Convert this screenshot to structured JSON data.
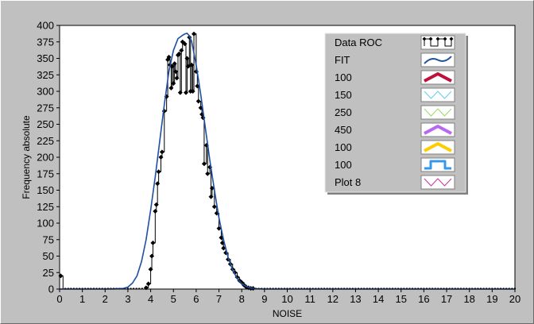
{
  "chart_data": {
    "type": "line",
    "title": "",
    "xlabel": "NOISE",
    "ylabel": "Frequency absolute",
    "xlim": [
      0,
      20
    ],
    "ylim": [
      0,
      400
    ],
    "x_ticks": [
      0,
      1,
      2,
      3,
      4,
      5,
      6,
      7,
      8,
      9,
      10,
      11,
      12,
      13,
      14,
      15,
      16,
      17,
      18,
      19,
      20
    ],
    "y_ticks": [
      0,
      25,
      50,
      75,
      100,
      125,
      150,
      175,
      200,
      225,
      250,
      275,
      300,
      325,
      350,
      375,
      400
    ],
    "grid": false,
    "legend_position": "top-right",
    "colors": {
      "background": "#c0c0c0",
      "plot_area": "#ffffff",
      "data": "#000000",
      "fit": "#1f4fa0"
    },
    "legend": [
      {
        "label": "Data ROC",
        "color": "#000000",
        "style": "line-marker"
      },
      {
        "label": "FIT",
        "color": "#1f4fa0",
        "style": "zigzag"
      },
      {
        "label": "100",
        "color": "#c0103a",
        "style": "zigzag-thick"
      },
      {
        "label": "150",
        "color": "#66ccee",
        "style": "zigzag-thin"
      },
      {
        "label": "250",
        "color": "#99dd66",
        "style": "zigzag-thin"
      },
      {
        "label": "450",
        "color": "#bb66ee",
        "style": "zigzag-thick"
      },
      {
        "label": "100",
        "color": "#ffcc00",
        "style": "zigzag-thick"
      },
      {
        "label": "100",
        "color": "#3399ee",
        "style": "step"
      },
      {
        "label": "Plot 8",
        "color": "#cc3399",
        "style": "zigzag-thin"
      }
    ],
    "series": [
      {
        "name": "Data ROC",
        "style": "step-marker",
        "points": [
          [
            0.05,
            20
          ],
          [
            0.15,
            0
          ],
          [
            3.7,
            0
          ],
          [
            3.8,
            2
          ],
          [
            3.9,
            8
          ],
          [
            4.0,
            30
          ],
          [
            4.05,
            50
          ],
          [
            4.1,
            70
          ],
          [
            4.2,
            118
          ],
          [
            4.25,
            128
          ],
          [
            4.3,
            160
          ],
          [
            4.35,
            178
          ],
          [
            4.45,
            200
          ],
          [
            4.5,
            208
          ],
          [
            4.6,
            270
          ],
          [
            4.7,
            292
          ],
          [
            4.75,
            348
          ],
          [
            4.8,
            352
          ],
          [
            4.85,
            340
          ],
          [
            4.9,
            305
          ],
          [
            4.95,
            338
          ],
          [
            5.0,
            312
          ],
          [
            5.05,
            342
          ],
          [
            5.1,
            330
          ],
          [
            5.15,
            320
          ],
          [
            5.2,
            355
          ],
          [
            5.25,
            357
          ],
          [
            5.3,
            298
          ],
          [
            5.35,
            362
          ],
          [
            5.4,
            375
          ],
          [
            5.5,
            372
          ],
          [
            5.55,
            298
          ],
          [
            5.6,
            350
          ],
          [
            5.65,
            338
          ],
          [
            5.7,
            382
          ],
          [
            5.75,
            300
          ],
          [
            5.8,
            340
          ],
          [
            5.85,
            300
          ],
          [
            5.9,
            387
          ],
          [
            6.0,
            330
          ],
          [
            6.05,
            308
          ],
          [
            6.1,
            285
          ],
          [
            6.2,
            275
          ],
          [
            6.25,
            265
          ],
          [
            6.3,
            260
          ],
          [
            6.35,
            190
          ],
          [
            6.45,
            218
          ],
          [
            6.5,
            175
          ],
          [
            6.6,
            185
          ],
          [
            6.65,
            140
          ],
          [
            6.7,
            153
          ],
          [
            6.8,
            125
          ],
          [
            6.9,
            115
          ],
          [
            7.0,
            92
          ],
          [
            7.1,
            78
          ],
          [
            7.15,
            70
          ],
          [
            7.2,
            62
          ],
          [
            7.3,
            55
          ],
          [
            7.4,
            45
          ],
          [
            7.5,
            38
          ],
          [
            7.6,
            30
          ],
          [
            7.7,
            25
          ],
          [
            7.8,
            18
          ],
          [
            7.9,
            13
          ],
          [
            8.0,
            10
          ],
          [
            8.1,
            6
          ],
          [
            8.2,
            3
          ],
          [
            8.3,
            2
          ],
          [
            8.4,
            1
          ],
          [
            8.5,
            1
          ],
          [
            8.6,
            0
          ],
          [
            20,
            0
          ]
        ]
      },
      {
        "name": "FIT",
        "style": "line",
        "points": [
          [
            0,
            0
          ],
          [
            2,
            0
          ],
          [
            2.4,
            0.2
          ],
          [
            2.8,
            1
          ],
          [
            3.0,
            3
          ],
          [
            3.2,
            9
          ],
          [
            3.4,
            20
          ],
          [
            3.6,
            42
          ],
          [
            3.8,
            75
          ],
          [
            4.0,
            120
          ],
          [
            4.2,
            170
          ],
          [
            4.4,
            225
          ],
          [
            4.6,
            280
          ],
          [
            4.8,
            330
          ],
          [
            5.0,
            362
          ],
          [
            5.2,
            380
          ],
          [
            5.4,
            385
          ],
          [
            5.5,
            387
          ],
          [
            5.6,
            388
          ],
          [
            5.7,
            384
          ],
          [
            5.8,
            376
          ],
          [
            6.0,
            340
          ],
          [
            6.2,
            295
          ],
          [
            6.4,
            245
          ],
          [
            6.6,
            195
          ],
          [
            6.8,
            150
          ],
          [
            7.0,
            108
          ],
          [
            7.2,
            75
          ],
          [
            7.4,
            48
          ],
          [
            7.6,
            29
          ],
          [
            7.8,
            16
          ],
          [
            8.0,
            8
          ],
          [
            8.2,
            4
          ],
          [
            8.4,
            1.5
          ],
          [
            8.6,
            0.5
          ],
          [
            9.0,
            0
          ],
          [
            20,
            0
          ]
        ]
      }
    ]
  }
}
